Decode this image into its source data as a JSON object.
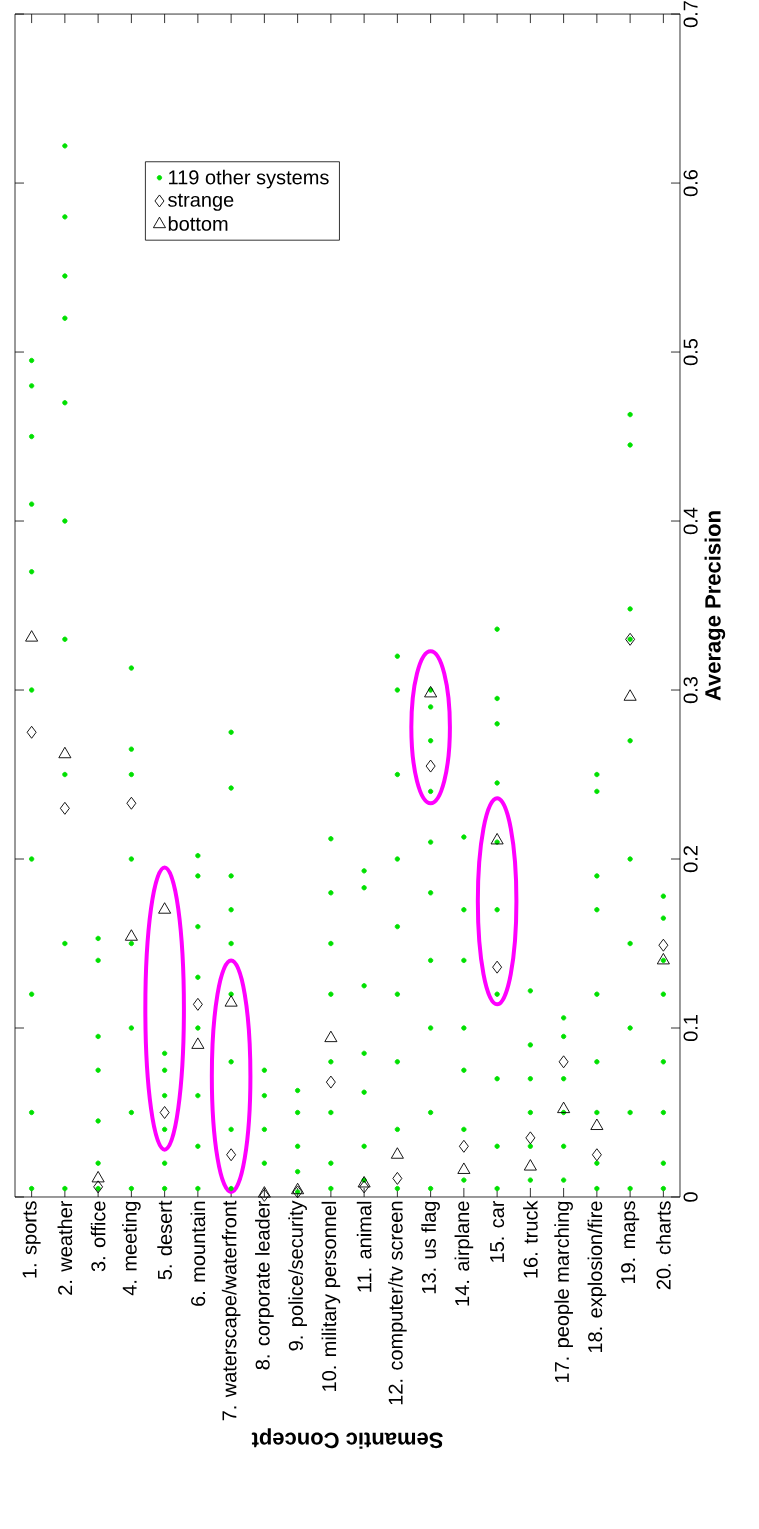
{
  "chart_data": {
    "type": "scatter",
    "xlabel": "Semantic Concept",
    "ylabel": "Average Precision",
    "categories": [
      "1. sports",
      "2. weather",
      "3. office",
      "4. meeting",
      "5. desert",
      "6. mountain",
      "7. waterscape/waterfront",
      "8. corporate leader",
      "9. police/security",
      "10. military personnel",
      "11. animal",
      "12. computer/tv screen",
      "13. us flag",
      "14. airplane",
      "15. car",
      "16. truck",
      "17. people marching",
      "18. explosion/fire",
      "19. maps",
      "20. charts"
    ],
    "ylim": [
      0,
      0.7
    ],
    "yticks": [
      0,
      0.1,
      0.2,
      0.3,
      0.4,
      0.5,
      0.6,
      0.7
    ],
    "legend": "top left",
    "grid": false,
    "series": [
      {
        "name": "119 other systems",
        "color": "#00e000",
        "marker": "circle",
        "values": [
          0.495,
          0.622,
          0.153,
          0.313,
          0.085,
          0.202,
          0.275,
          0.075,
          0.063,
          0.212,
          0.193,
          0.32,
          0.3,
          0.213,
          0.336,
          0.122,
          0.106,
          0.25,
          0.463,
          0.178
        ]
      },
      {
        "color": "#00e000",
        "marker": "circle",
        "values": [
          0.48,
          0.58,
          0.14,
          0.265,
          0.075,
          0.19,
          0.242,
          0.06,
          0.05,
          0.18,
          0.183,
          0.3,
          0.29,
          0.17,
          0.295,
          0.09,
          0.095,
          0.24,
          0.445,
          0.165
        ]
      },
      {
        "color": "#00e000",
        "marker": "circle",
        "values": [
          0.45,
          0.545,
          0.095,
          0.25,
          0.06,
          0.16,
          0.19,
          0.04,
          0.03,
          0.15,
          0.125,
          0.25,
          0.27,
          0.14,
          0.28,
          0.07,
          0.07,
          0.19,
          0.348,
          0.14
        ]
      },
      {
        "color": "#00e000",
        "marker": "circle",
        "values": [
          0.41,
          0.52,
          0.075,
          0.2,
          0.04,
          0.13,
          0.17,
          0.02,
          0.015,
          0.12,
          0.085,
          0.2,
          0.24,
          0.1,
          0.245,
          0.05,
          0.05,
          0.17,
          0.33,
          0.12
        ]
      },
      {
        "color": "#00e000",
        "marker": "circle",
        "values": [
          0.37,
          0.47,
          0.045,
          0.15,
          0.02,
          0.1,
          0.15,
          null,
          0.003,
          0.08,
          0.062,
          0.16,
          0.21,
          0.075,
          0.21,
          0.03,
          0.03,
          0.12,
          0.27,
          0.08
        ]
      },
      {
        "color": "#00e000",
        "marker": "circle",
        "values": [
          0.3,
          0.4,
          0.02,
          0.1,
          0.005,
          0.06,
          0.12,
          null,
          null,
          0.05,
          0.03,
          0.12,
          0.18,
          0.04,
          0.17,
          0.01,
          0.01,
          0.08,
          0.2,
          0.05
        ]
      },
      {
        "color": "#00e000",
        "marker": "circle",
        "values": [
          0.2,
          0.33,
          0.005,
          0.05,
          null,
          0.03,
          0.08,
          null,
          null,
          0.02,
          0.01,
          0.08,
          0.14,
          0.01,
          0.12,
          null,
          null,
          0.05,
          0.15,
          0.02
        ]
      },
      {
        "color": "#00e000",
        "marker": "circle",
        "values": [
          0.12,
          0.25,
          null,
          0.005,
          null,
          0.005,
          0.04,
          null,
          null,
          0.005,
          null,
          0.04,
          0.1,
          null,
          0.07,
          null,
          null,
          0.02,
          0.1,
          0.005
        ]
      },
      {
        "color": "#00e000",
        "marker": "circle",
        "values": [
          0.05,
          0.15,
          null,
          null,
          null,
          null,
          0.005,
          null,
          null,
          null,
          null,
          0.005,
          0.05,
          null,
          0.03,
          null,
          null,
          0.005,
          0.05,
          null
        ]
      },
      {
        "color": "#00e000",
        "marker": "circle",
        "values": [
          0.005,
          0.005,
          null,
          null,
          null,
          null,
          null,
          null,
          null,
          null,
          null,
          null,
          0.005,
          null,
          0.005,
          null,
          null,
          null,
          0.005,
          null
        ]
      },
      {
        "name": "strange",
        "color": "#000000",
        "marker": "diamond",
        "values": [
          0.275,
          0.23,
          0.006,
          0.233,
          0.05,
          0.114,
          0.025,
          0.001,
          0.003,
          0.068,
          0.006,
          0.011,
          0.255,
          0.03,
          0.136,
          0.035,
          0.08,
          0.025,
          0.33,
          0.149
        ]
      },
      {
        "name": "bottom",
        "color": "#000000",
        "marker": "triangle",
        "values": [
          0.331,
          0.262,
          0.011,
          0.154,
          0.17,
          0.09,
          0.115,
          0.002,
          0.004,
          0.094,
          0.008,
          0.025,
          0.298,
          0.016,
          0.211,
          0.018,
          0.052,
          0.042,
          0.296,
          0.14
        ]
      }
    ]
  }
}
